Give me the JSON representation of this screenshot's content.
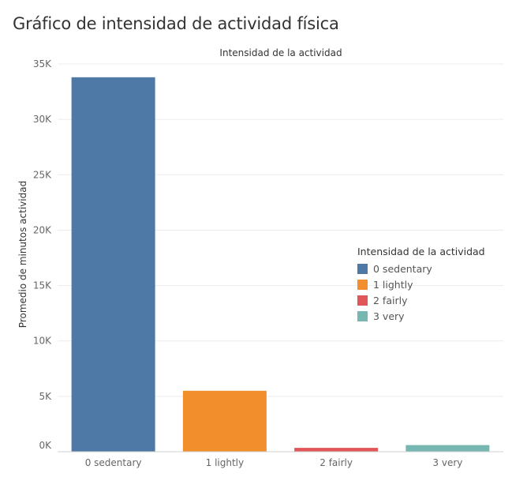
{
  "page": {
    "title": "Gráfico de intensidad de actividad física"
  },
  "chart_data": {
    "type": "bar",
    "title": "Intensidad de la actividad",
    "xlabel": "",
    "ylabel": "Promedio de minutos actividad",
    "categories": [
      "0 sedentary",
      "1 lightly",
      "2 fairly",
      "3 very"
    ],
    "values": [
      33800,
      5500,
      350,
      600
    ],
    "colors": [
      "#4e79a7",
      "#f28e2b",
      "#e15759",
      "#76b7b2"
    ],
    "ylim": [
      0,
      35000
    ],
    "yticks": [
      0,
      5000,
      10000,
      15000,
      20000,
      25000,
      30000,
      35000
    ],
    "ytick_labels": [
      "0K",
      "5K",
      "10K",
      "15K",
      "20K",
      "25K",
      "30K",
      "35K"
    ],
    "grid": true,
    "legend": {
      "title": "Intensidad de la actividad",
      "placement": "right",
      "entries": [
        "0 sedentary",
        "1 lightly",
        "2 fairly",
        "3 very"
      ]
    }
  }
}
